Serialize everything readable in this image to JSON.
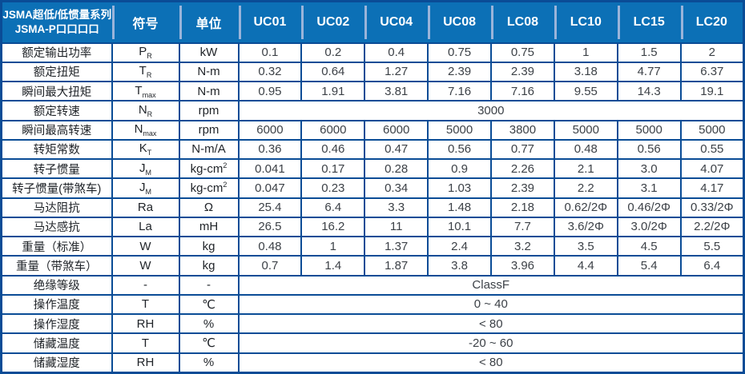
{
  "colors": {
    "header_bg": "#0c70b6",
    "grid_border": "#0a4c96",
    "header_divider": "#9ab4da",
    "header_text": "#ffffff",
    "label_text": "#1f2328",
    "value_text": "#3c4147"
  },
  "table": {
    "title_line1": "JSMA超低/低惯量系列",
    "title_line2": "JSMA-P口口口口",
    "symbol_header": "符号",
    "unit_header": "单位",
    "models": [
      "UC01",
      "UC02",
      "UC04",
      "UC08",
      "LC08",
      "LC10",
      "LC15",
      "LC20"
    ],
    "rows": [
      {
        "label": "额定输出功率",
        "symbol": "P_R",
        "unit": "kW",
        "values": [
          "0.1",
          "0.2",
          "0.4",
          "0.75",
          "0.75",
          "1",
          "1.5",
          "2"
        ]
      },
      {
        "label": "额定扭矩",
        "symbol": "T_R",
        "unit": "N-m",
        "values": [
          "0.32",
          "0.64",
          "1.27",
          "2.39",
          "2.39",
          "3.18",
          "4.77",
          "6.37"
        ]
      },
      {
        "label": "瞬间最大扭矩",
        "symbol": "T_max",
        "unit": "N-m",
        "values": [
          "0.95",
          "1.91",
          "3.81",
          "7.16",
          "7.16",
          "9.55",
          "14.3",
          "19.1"
        ]
      },
      {
        "label": "额定转速",
        "symbol": "N_R",
        "unit": "rpm",
        "merged": "3000"
      },
      {
        "label": "瞬间最高转速",
        "symbol": "N_max",
        "unit": "rpm",
        "values": [
          "6000",
          "6000",
          "6000",
          "5000",
          "3800",
          "5000",
          "5000",
          "5000"
        ]
      },
      {
        "label": "转矩常数",
        "symbol": "K_T",
        "unit": "N-m/A",
        "values": [
          "0.36",
          "0.46",
          "0.47",
          "0.56",
          "0.77",
          "0.48",
          "0.56",
          "0.55"
        ]
      },
      {
        "label": "转子惯量",
        "symbol": "J_M",
        "unit": "kg-cm^2",
        "values": [
          "0.041",
          "0.17",
          "0.28",
          "0.9",
          "2.26",
          "2.1",
          "3.0",
          "4.07"
        ]
      },
      {
        "label": "转子惯量(带煞车)",
        "symbol": "J_M",
        "unit": "kg-cm^2",
        "values": [
          "0.047",
          "0.23",
          "0.34",
          "1.03",
          "2.39",
          "2.2",
          "3.1",
          "4.17"
        ]
      },
      {
        "label": "马达阻抗",
        "symbol": "Ra",
        "unit": "Ω",
        "values": [
          "25.4",
          "6.4",
          "3.3",
          "1.48",
          "2.18",
          "0.62/2Φ",
          "0.46/2Φ",
          "0.33/2Φ"
        ]
      },
      {
        "label": "马达感抗",
        "symbol": "La",
        "unit": "mH",
        "values": [
          "26.5",
          "16.2",
          "11",
          "10.1",
          "7.7",
          "3.6/2Φ",
          "3.0/2Φ",
          "2.2/2Φ"
        ]
      },
      {
        "label": "重量（标准）",
        "symbol": "W",
        "unit": "kg",
        "values": [
          "0.48",
          "1",
          "1.37",
          "2.4",
          "3.2",
          "3.5",
          "4.5",
          "5.5"
        ]
      },
      {
        "label": "重量（带煞车）",
        "symbol": "W",
        "unit": "kg",
        "values": [
          "0.7",
          "1.4",
          "1.87",
          "3.8",
          "3.96",
          "4.4",
          "5.4",
          "6.4"
        ]
      },
      {
        "label": "绝缘等级",
        "symbol": "-",
        "unit": "-",
        "merged": "ClassF"
      },
      {
        "label": "操作温度",
        "symbol": "T",
        "unit": "℃",
        "merged": "0 ~ 40"
      },
      {
        "label": "操作湿度",
        "symbol": "RH",
        "unit": "%",
        "merged": "< 80"
      },
      {
        "label": "储藏温度",
        "symbol": "T",
        "unit": "℃",
        "merged": "-20 ~ 60"
      },
      {
        "label": "储藏湿度",
        "symbol": "RH",
        "unit": "%",
        "merged": "< 80"
      }
    ]
  }
}
